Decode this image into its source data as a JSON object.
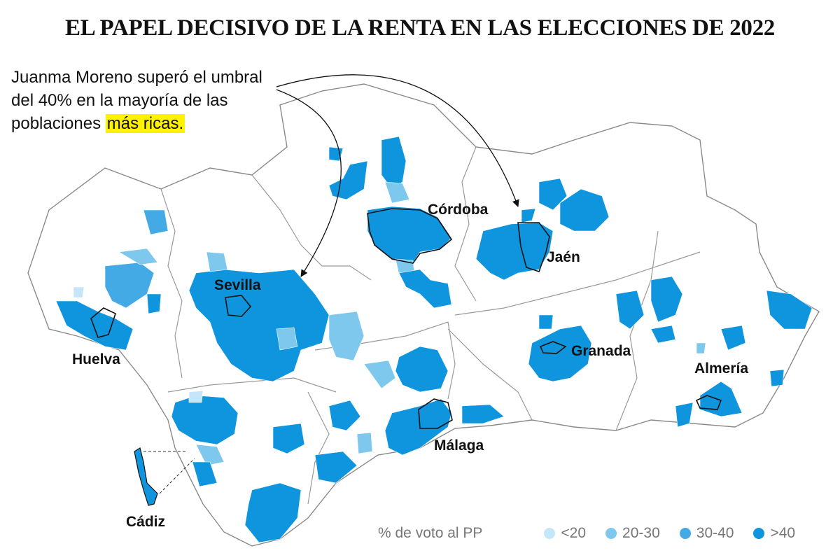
{
  "title": "EL PAPEL DECISIVO DE LA RENTA EN LAS ELECCIONES DE 2022",
  "annotation": {
    "text_before": "Juanma Moreno superó el umbral del 40% en la mayoría de las poblaciones ",
    "highlight": "más ricas."
  },
  "cities": {
    "cordoba": "Córdoba",
    "jaen": "Jaén",
    "sevilla": "Sevilla",
    "huelva": "Huelva",
    "granada": "Granada",
    "almeria": "Almería",
    "malaga": "Málaga",
    "cadiz": "Cádiz"
  },
  "legend": {
    "title": "% de voto al PP",
    "items": [
      {
        "label": "<20",
        "color": "#c5e6f8"
      },
      {
        "label": "20-30",
        "color": "#7ec8ee"
      },
      {
        "label": "30-40",
        "color": "#44aae6"
      },
      {
        "label": ">40",
        "color": "#0e95de"
      }
    ]
  },
  "colors": {
    "lt20": "#c5e6f8",
    "r20_30": "#7ec8ee",
    "r30_40": "#44aae6",
    "gt40": "#0e95de",
    "highlight": "#fff200",
    "border": "#8a8a8a"
  }
}
